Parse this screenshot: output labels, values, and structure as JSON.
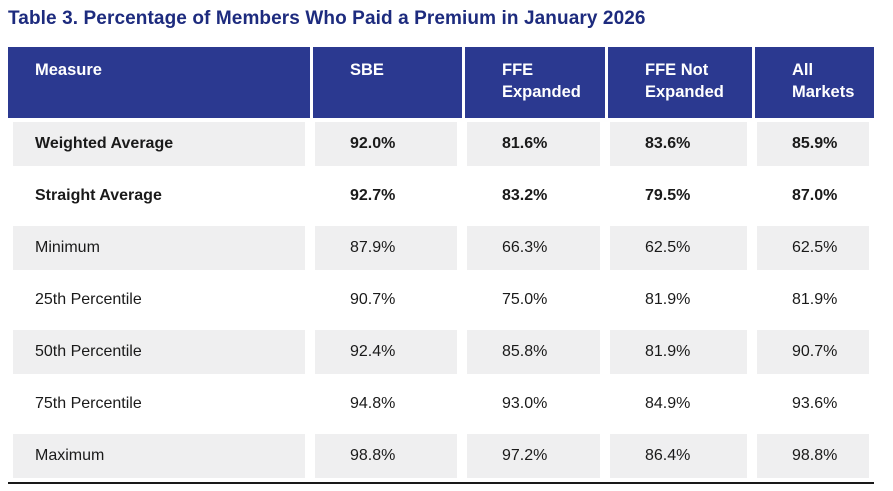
{
  "title": "Table 3. Percentage of Members Who Paid a Premium in January 2026",
  "table": {
    "columns": [
      "Measure",
      "SBE",
      "FFE Expanded",
      "FFE Not Expanded",
      "All Markets"
    ],
    "rows": [
      {
        "measure": "Weighted Average",
        "values": [
          "92.0%",
          "81.6%",
          "83.6%",
          "85.9%"
        ],
        "bold": true
      },
      {
        "measure": "Straight Average",
        "values": [
          "92.7%",
          "83.2%",
          "79.5%",
          "87.0%"
        ],
        "bold": true
      },
      {
        "measure": "Minimum",
        "values": [
          "87.9%",
          "66.3%",
          "62.5%",
          "62.5%"
        ],
        "bold": false
      },
      {
        "measure": "25th Percentile",
        "values": [
          "90.7%",
          "75.0%",
          "81.9%",
          "81.9%"
        ],
        "bold": false
      },
      {
        "measure": "50th Percentile",
        "values": [
          "92.4%",
          "85.8%",
          "81.9%",
          "90.7%"
        ],
        "bold": false
      },
      {
        "measure": "75th Percentile",
        "values": [
          "94.8%",
          "93.0%",
          "84.9%",
          "93.6%"
        ],
        "bold": false
      },
      {
        "measure": "Maximum",
        "values": [
          "98.8%",
          "97.2%",
          "86.4%",
          "98.8%"
        ],
        "bold": false
      }
    ]
  },
  "colors": {
    "title_text": "#1D2B7E",
    "header_bg": "#2B3990",
    "header_text": "#FFFFFF",
    "stripe_bg": "#EFEFF0",
    "body_text": "#1A1A1A",
    "bottom_rule": "#191919"
  }
}
